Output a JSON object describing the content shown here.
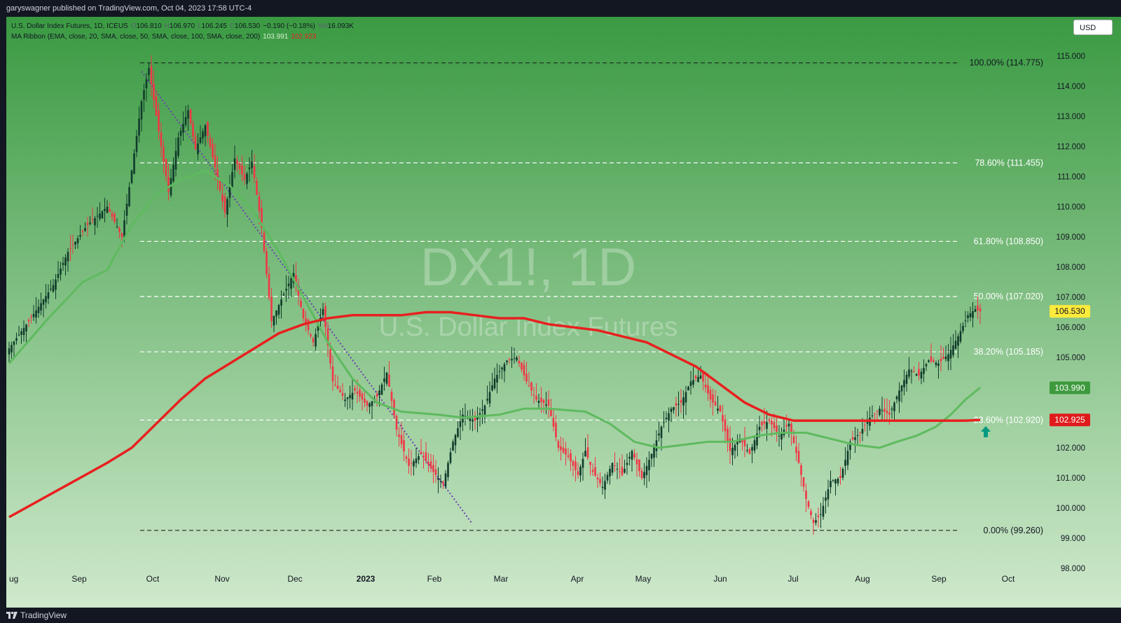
{
  "header": {
    "published": "garyswagner published on TradingView.com, Oct 04, 2023 17:58 UTC-4"
  },
  "footer": {
    "brand": "TradingView"
  },
  "currency_button": "USD",
  "legend": {
    "symbol": "U.S. Dollar Index Futures, 1D, ICEUS",
    "o_label": "O",
    "o": "106.810",
    "h_label": "H",
    "h": "106.970",
    "l_label": "L",
    "l": "106.245",
    "c_label": "C",
    "c": "106.530",
    "change": "−0.190 (−0.18%)",
    "vol_label": "Vol",
    "vol": "16.093K",
    "ma_label": "MA Ribbon (EMA, close, 20, SMA, close, 50, SMA, close, 100, SMA, close, 200)",
    "ma1": "103.991",
    "ma2": "102.923"
  },
  "watermark": {
    "symbol": "DX1!, 1D",
    "name": "U.S. Dollar Index Futures"
  },
  "colors": {
    "up": "#0f3b2b",
    "down": "#f23645",
    "ma100": "#5fba5f",
    "ma200": "#e8201f",
    "bg_top": "#3a9a42",
    "bg_bottom": "#cfe9cc",
    "price_tag": "#ffeb3b"
  },
  "chart_data": {
    "type": "candlestick",
    "x_labels": [
      "ug",
      "Sep",
      "Oct",
      "Nov",
      "Dec",
      "2023",
      "Feb",
      "Mar",
      "Apr",
      "May",
      "Jun",
      "Jul",
      "Aug",
      "Sep",
      "Oct"
    ],
    "y_ticks": [
      "98.000",
      "99.000",
      "100.000",
      "101.000",
      "102.000",
      "103.000",
      "104.000",
      "105.000",
      "106.000",
      "107.000",
      "108.000",
      "109.000",
      "110.000",
      "111.000",
      "112.000",
      "113.000",
      "114.000",
      "115.000"
    ],
    "ylim": [
      97.0,
      116.0
    ],
    "last_price": "106.530",
    "ma_values": {
      "ma100": "103.990",
      "ma200": "102.925"
    },
    "fib_levels": [
      {
        "label": "100.00% (114.775)",
        "value": 114.775
      },
      {
        "label": "78.60% (111.455)",
        "value": 111.455
      },
      {
        "label": "61.80% (108.850)",
        "value": 108.85
      },
      {
        "label": "50.00% (107.020)",
        "value": 107.02
      },
      {
        "label": "38.20% (105.185)",
        "value": 105.185
      },
      {
        "label": "23.60% (102.920)",
        "value": 102.92
      },
      {
        "label": "0.00% (99.260)",
        "value": 99.26
      }
    ],
    "anchors": [
      [
        0,
        105.3
      ],
      [
        8,
        106.2
      ],
      [
        18,
        107.4
      ],
      [
        24,
        108.5
      ],
      [
        32,
        109.4
      ],
      [
        40,
        110.0
      ],
      [
        46,
        109.0
      ],
      [
        50,
        111.2
      ],
      [
        54,
        113.5
      ],
      [
        57,
        114.6
      ],
      [
        61,
        112.5
      ],
      [
        65,
        110.5
      ],
      [
        69,
        112.3
      ],
      [
        73,
        113.2
      ],
      [
        76,
        111.9
      ],
      [
        80,
        112.7
      ],
      [
        84,
        111.3
      ],
      [
        88,
        109.8
      ],
      [
        92,
        111.6
      ],
      [
        96,
        110.9
      ],
      [
        99,
        111.5
      ],
      [
        103,
        109.3
      ],
      [
        107,
        106.2
      ],
      [
        112,
        107.1
      ],
      [
        116,
        107.8
      ],
      [
        120,
        106.3
      ],
      [
        124,
        105.5
      ],
      [
        128,
        106.6
      ],
      [
        132,
        104.2
      ],
      [
        137,
        103.6
      ],
      [
        141,
        103.9
      ],
      [
        146,
        103.4
      ],
      [
        150,
        103.7
      ],
      [
        154,
        104.5
      ],
      [
        158,
        102.6
      ],
      [
        163,
        101.4
      ],
      [
        168,
        101.8
      ],
      [
        173,
        101.2
      ],
      [
        177,
        100.8
      ],
      [
        181,
        102.2
      ],
      [
        185,
        103.1
      ],
      [
        190,
        102.9
      ],
      [
        194,
        103.4
      ],
      [
        198,
        104.3
      ],
      [
        203,
        104.9
      ],
      [
        207,
        105.0
      ],
      [
        211,
        104.2
      ],
      [
        215,
        103.6
      ],
      [
        220,
        103.4
      ],
      [
        224,
        102.0
      ],
      [
        228,
        101.7
      ],
      [
        232,
        101.1
      ],
      [
        235,
        101.9
      ],
      [
        238,
        101.2
      ],
      [
        242,
        100.7
      ],
      [
        246,
        101.5
      ],
      [
        250,
        101.1
      ],
      [
        254,
        101.9
      ],
      [
        258,
        101.0
      ],
      [
        262,
        101.8
      ],
      [
        266,
        102.7
      ],
      [
        270,
        103.3
      ],
      [
        274,
        103.5
      ],
      [
        278,
        104.2
      ],
      [
        282,
        104.4
      ],
      [
        286,
        103.6
      ],
      [
        290,
        103.2
      ],
      [
        294,
        101.9
      ],
      [
        298,
        102.3
      ],
      [
        302,
        101.8
      ],
      [
        306,
        102.7
      ],
      [
        310,
        102.9
      ],
      [
        314,
        102.4
      ],
      [
        318,
        102.8
      ],
      [
        322,
        101.5
      ],
      [
        325,
        100.3
      ],
      [
        328,
        99.5
      ],
      [
        331,
        99.8
      ],
      [
        335,
        100.9
      ],
      [
        339,
        101.0
      ],
      [
        343,
        102.2
      ],
      [
        347,
        102.5
      ],
      [
        351,
        103.0
      ],
      [
        355,
        103.3
      ],
      [
        359,
        103.1
      ],
      [
        363,
        103.9
      ],
      [
        367,
        104.6
      ],
      [
        371,
        104.4
      ],
      [
        375,
        104.9
      ],
      [
        379,
        104.8
      ],
      [
        383,
        105.1
      ],
      [
        387,
        105.7
      ],
      [
        391,
        106.4
      ],
      [
        394,
        106.6
      ],
      [
        396,
        106.53
      ]
    ],
    "ma100_curve": [
      [
        0,
        104.8
      ],
      [
        16,
        106.3
      ],
      [
        30,
        107.5
      ],
      [
        40,
        107.9
      ],
      [
        50,
        109.4
      ],
      [
        60,
        110.4
      ],
      [
        70,
        110.9
      ],
      [
        80,
        111.2
      ],
      [
        90,
        110.7
      ],
      [
        100,
        109.8
      ],
      [
        110,
        108.5
      ],
      [
        120,
        107.0
      ],
      [
        130,
        105.5
      ],
      [
        140,
        104.3
      ],
      [
        150,
        103.5
      ],
      [
        160,
        103.2
      ],
      [
        175,
        103.1
      ],
      [
        185,
        103.0
      ],
      [
        200,
        103.1
      ],
      [
        210,
        103.3
      ],
      [
        220,
        103.3
      ],
      [
        235,
        103.2
      ],
      [
        245,
        102.8
      ],
      [
        255,
        102.2
      ],
      [
        265,
        102.0
      ],
      [
        275,
        102.1
      ],
      [
        285,
        102.2
      ],
      [
        295,
        102.2
      ],
      [
        305,
        102.4
      ],
      [
        315,
        102.5
      ],
      [
        325,
        102.5
      ],
      [
        335,
        102.3
      ],
      [
        345,
        102.1
      ],
      [
        355,
        102.0
      ],
      [
        362,
        102.2
      ],
      [
        370,
        102.4
      ],
      [
        378,
        102.7
      ],
      [
        384,
        103.1
      ],
      [
        390,
        103.6
      ],
      [
        396,
        104.0
      ]
    ],
    "ma200_curve": [
      [
        0,
        99.7
      ],
      [
        20,
        100.6
      ],
      [
        40,
        101.5
      ],
      [
        50,
        102.0
      ],
      [
        60,
        102.8
      ],
      [
        70,
        103.6
      ],
      [
        80,
        104.3
      ],
      [
        90,
        104.8
      ],
      [
        100,
        105.3
      ],
      [
        110,
        105.8
      ],
      [
        120,
        106.1
      ],
      [
        130,
        106.3
      ],
      [
        140,
        106.4
      ],
      [
        150,
        106.4
      ],
      [
        160,
        106.4
      ],
      [
        170,
        106.5
      ],
      [
        180,
        106.5
      ],
      [
        190,
        106.4
      ],
      [
        200,
        106.3
      ],
      [
        210,
        106.3
      ],
      [
        220,
        106.1
      ],
      [
        230,
        106.0
      ],
      [
        240,
        105.9
      ],
      [
        250,
        105.7
      ],
      [
        260,
        105.5
      ],
      [
        270,
        105.1
      ],
      [
        280,
        104.7
      ],
      [
        290,
        104.1
      ],
      [
        300,
        103.5
      ],
      [
        310,
        103.1
      ],
      [
        320,
        102.9
      ],
      [
        330,
        102.9
      ],
      [
        340,
        102.9
      ],
      [
        350,
        102.9
      ],
      [
        360,
        102.9
      ],
      [
        370,
        102.9
      ],
      [
        380,
        102.9
      ],
      [
        390,
        102.9
      ],
      [
        396,
        102.925
      ]
    ]
  }
}
